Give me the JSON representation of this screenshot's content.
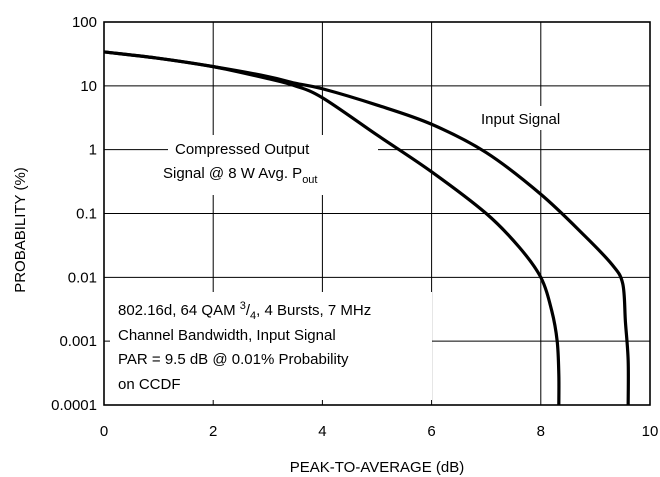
{
  "chart_data": {
    "type": "line",
    "title": "",
    "xlabel": "PEAK-TO-AVERAGE (dB)",
    "ylabel": "PROBABILITY (%)",
    "xlim": [
      0,
      10
    ],
    "ylim": [
      0.0001,
      100
    ],
    "yscale": "log",
    "grid": true,
    "xticks": [
      0,
      2,
      4,
      6,
      8,
      10
    ],
    "xtick_labels": [
      "0",
      "2",
      "4",
      "6",
      "8",
      "10"
    ],
    "yticks": [
      100,
      10,
      1,
      0.1,
      0.01,
      0.001,
      0.0001
    ],
    "ytick_labels": [
      "100",
      "10",
      "1",
      "0.1",
      "0.01",
      "0.001",
      "0.0001"
    ],
    "series": [
      {
        "name": "Input Signal",
        "x": [
          0,
          1,
          2,
          3,
          3.5,
          4,
          5,
          6,
          7,
          8,
          8.8,
          9.3,
          9.5,
          9.55,
          9.6,
          9.6
        ],
        "y": [
          34,
          27,
          20,
          14,
          11,
          9,
          5,
          2.5,
          0.9,
          0.2,
          0.045,
          0.016,
          0.008,
          0.002,
          0.0005,
          0.0001
        ]
      },
      {
        "name": "Compressed Output Signal @ 8 W Avg. Pout",
        "x": [
          0,
          1,
          2,
          3,
          3.5,
          4,
          5,
          6,
          7,
          7.6,
          8,
          8.2,
          8.3,
          8.33,
          8.33
        ],
        "y": [
          34,
          27,
          20,
          13,
          10,
          6.5,
          1.7,
          0.45,
          0.1,
          0.03,
          0.01,
          0.003,
          0.001,
          0.0003,
          0.0001
        ]
      }
    ],
    "annotations": {
      "input_label": "Input Signal",
      "output_label_line1": "Compressed Output",
      "output_label_line2_prefix": "Signal @ 8 W Avg. P",
      "output_label_line2_sub": "out",
      "note_line1_prefix": "802.16d, 64 QAM ",
      "note_line1_frac_num": "3",
      "note_line1_frac_sep": "/",
      "note_line1_frac_den": "4",
      "note_line1_suffix": ", 4 Bursts, 7 MHz",
      "note_line2": "Channel Bandwidth, Input Signal",
      "note_line3": "PAR = 9.5 dB @ 0.01% Probability",
      "note_line4": "on CCDF"
    }
  }
}
